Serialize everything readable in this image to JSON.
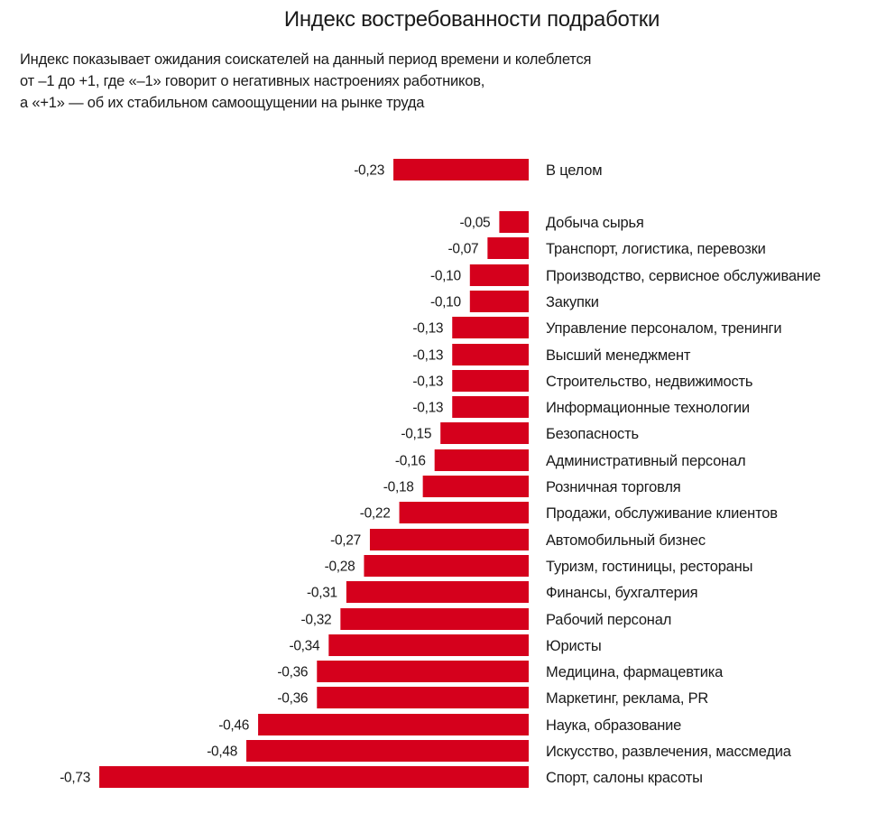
{
  "title": "Индекс востребованности подработки",
  "subtitle_lines": [
    "Индекс показывает ожидания соискателей на данный период времени и колеблется",
    "от –1 до +1, где «–1» говорит о негативных настроениях работников,",
    "а «+1» — об их стабильном самоощущении на рынке труда"
  ],
  "colors": {
    "bar": "#d5001c",
    "text": "#1a1a1a"
  },
  "chart_data": {
    "type": "bar",
    "orientation": "horizontal",
    "title": "Индекс востребованности подработки",
    "xlabel": "",
    "ylabel": "",
    "xlim": [
      -1,
      1
    ],
    "grid": false,
    "summary": {
      "category": "В целом",
      "value": -0.23,
      "label": "-0,23"
    },
    "categories": [
      "Добыча сырья",
      "Транспорт, логистика, перевозки",
      "Производство, сервисное обслуживание",
      "Закупки",
      "Управление персоналом, тренинги",
      "Высший менеджмент",
      "Строительство, недвижимость",
      "Информационные технологии",
      "Безопасность",
      "Административный персонал",
      "Розничная торговля",
      "Продажи, обслуживание клиентов",
      "Автомобильный бизнес",
      "Туризм, гостиницы, рестораны",
      "Финансы, бухгалтерия",
      "Рабочий персонал",
      "Юристы",
      "Медицина, фармацевтика",
      "Маркетинг, реклама, PR",
      "Наука, образование",
      "Искусство, развлечения, массмедиа",
      "Спорт, салоны красоты"
    ],
    "values": [
      -0.05,
      -0.07,
      -0.1,
      -0.1,
      -0.13,
      -0.13,
      -0.13,
      -0.13,
      -0.15,
      -0.16,
      -0.18,
      -0.22,
      -0.27,
      -0.28,
      -0.31,
      -0.32,
      -0.34,
      -0.36,
      -0.36,
      -0.46,
      -0.48,
      -0.73
    ],
    "value_labels": [
      "-0,05",
      "-0,07",
      "-0,10",
      "-0,10",
      "-0,13",
      "-0,13",
      "-0,13",
      "-0,13",
      "-0,15",
      "-0,16",
      "-0,18",
      "-0,22",
      "-0,27",
      "-0,28",
      "-0,31",
      "-0,32",
      "-0,34",
      "-0,36",
      "-0,36",
      "-0,46",
      "-0,48",
      "-0,73"
    ]
  }
}
